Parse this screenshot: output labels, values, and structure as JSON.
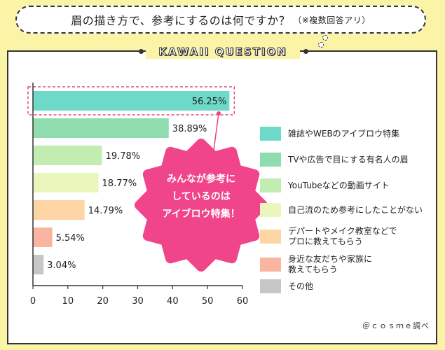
{
  "header": {
    "question": "眉の描き方で、参考にするのは何ですか？",
    "note": "（※複数回答アリ）"
  },
  "banner": {
    "title": "KAWAII QUESTION"
  },
  "callout": {
    "text": "みんなが参考に\nしているのは\nアイブロウ特集！"
  },
  "credit": "＠ｃｏｓｍｅ調べ",
  "colors": {
    "background": "#fbf3a6",
    "highlight": "#e8457d",
    "burst": "#f0458a"
  },
  "chart_data": {
    "type": "bar",
    "orientation": "horizontal",
    "categories": [
      "雑誌やWEBのアイブロウ特集",
      "TVや広告で目にする有名人の眉",
      "YouTubeなどの動画サイト",
      "自己流のため参考にしたことがない",
      "デパートやメイク教室などでプロに教えてもらう",
      "身近な友だちや家族に教えてもらう",
      "その他"
    ],
    "legend_labels": [
      "雑誌やWEBのアイブロウ特集",
      "TVや広告で目にする有名人の眉",
      "YouTubeなどの動画サイト",
      "自己流のため参考にしたことがない",
      "デパートやメイク教室などで\nプロに教えてもらう",
      "身近な友だちや家族に\n教えてもらう",
      "その他"
    ],
    "values": [
      56.25,
      38.89,
      19.78,
      18.77,
      14.79,
      5.54,
      3.04
    ],
    "value_labels": [
      "56.25%",
      "38.89%",
      "19.78%",
      "18.77%",
      "14.79%",
      "5.54%",
      "3.04%"
    ],
    "colors": [
      "#6fd9c9",
      "#8fdcaf",
      "#c3ecb0",
      "#e9f7bd",
      "#fdd4a3",
      "#f9b5a0",
      "#c6c6c6"
    ],
    "xlim": [
      0,
      60
    ],
    "xticks": [
      0,
      10,
      20,
      30,
      40,
      50,
      60
    ],
    "legend_position": "right",
    "grid": false
  }
}
